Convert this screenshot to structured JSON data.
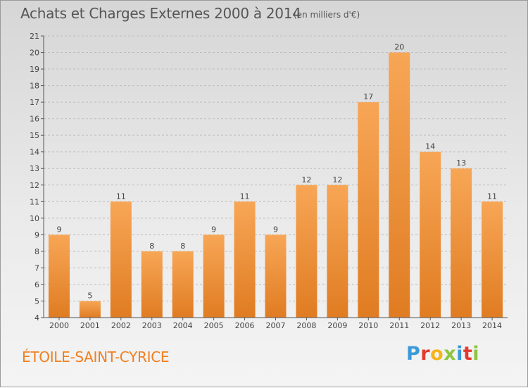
{
  "title": "Achats et Charges Externes 2000 à 2014",
  "subtitle": "(en milliers d'€)",
  "commune": "ÉTOILE-SAINT-CYRICE",
  "brand": {
    "letters": [
      {
        "ch": "P",
        "color": "#3b9ad8"
      },
      {
        "ch": "r",
        "color": "#e23a2e"
      },
      {
        "ch": "o",
        "color": "#f7b31b"
      },
      {
        "ch": "x",
        "color": "#8cc63f"
      },
      {
        "ch": "i",
        "color": "#3b9ad8"
      },
      {
        "ch": "t",
        "color": "#e23a2e"
      },
      {
        "ch": "i",
        "color": "#8cc63f"
      }
    ]
  },
  "colors": {
    "bar_top": "#f7a656",
    "bar_bottom": "#e07c22",
    "grid": "#bdbdbd",
    "axis": "#555555"
  },
  "chart_data": {
    "type": "bar",
    "title": "Achats et Charges Externes 2000 à 2014",
    "subtitle": "(en milliers d'€)",
    "categories": [
      "2000",
      "2001",
      "2002",
      "2003",
      "2004",
      "2005",
      "2006",
      "2007",
      "2008",
      "2009",
      "2010",
      "2011",
      "2012",
      "2013",
      "2014"
    ],
    "values": [
      9,
      5,
      11,
      8,
      8,
      9,
      11,
      9,
      12,
      12,
      17,
      20,
      14,
      13,
      11
    ],
    "ylim": [
      4,
      21
    ],
    "yticks": [
      4,
      5,
      6,
      7,
      8,
      9,
      10,
      11,
      12,
      13,
      14,
      15,
      16,
      17,
      18,
      19,
      20,
      21
    ],
    "grid": true,
    "data_labels": true
  }
}
